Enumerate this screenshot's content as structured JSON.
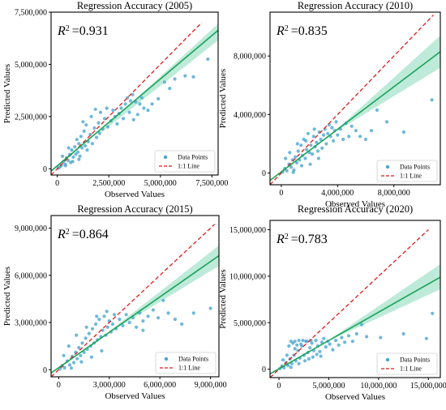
{
  "colors": {
    "points": "#4aa6cf",
    "fit_line": "#1aa35a",
    "ci_band": "#a8e3cc",
    "identity_line": "#e01b1b",
    "frame": "#000000"
  },
  "chart_data": [
    {
      "type": "scatter",
      "title": "Regression Accuracy (2005)",
      "xlabel": "Observed Values",
      "ylabel": "Predicted Values",
      "r2_label": "0.931",
      "xlim": [
        -300000,
        7800000
      ],
      "ylim": [
        -300000,
        7500000
      ],
      "xticks": [
        0,
        2500000,
        5000000,
        7500000
      ],
      "xtick_labels": [
        "0",
        "2,500,000",
        "5,000,000",
        "7,500,000"
      ],
      "yticks": [
        0,
        2500000,
        5000000,
        7500000
      ],
      "ytick_labels": [
        "0",
        "2,500,000",
        "5,000,000",
        "7,500,000"
      ],
      "fit": {
        "x": [
          -300000,
          7800000
        ],
        "y": [
          -110000,
          6630000
        ]
      },
      "ci": {
        "x": [
          2000000,
          7800000
        ],
        "upper": [
          1710000,
          6950000
        ],
        "lower": [
          1630000,
          6150000
        ]
      },
      "identity": {
        "x": [
          -300000,
          7000000
        ],
        "y": [
          -300000,
          7000000
        ]
      },
      "legend": {
        "points": "Data Points",
        "line": "1:1 Line",
        "position": "bottom-right"
      },
      "points": [
        [
          50000,
          30000
        ],
        [
          120000,
          80000
        ],
        [
          200000,
          150000
        ],
        [
          300000,
          350000
        ],
        [
          380000,
          210000
        ],
        [
          450000,
          520000
        ],
        [
          520000,
          400000
        ],
        [
          600000,
          680000
        ],
        [
          650000,
          300000
        ],
        [
          700000,
          900000
        ],
        [
          780000,
          560000
        ],
        [
          850000,
          1050000
        ],
        [
          900000,
          700000
        ],
        [
          950000,
          1400000
        ],
        [
          1000000,
          800000
        ],
        [
          1050000,
          1200000
        ],
        [
          1100000,
          600000
        ],
        [
          1150000,
          1550000
        ],
        [
          1200000,
          1000000
        ],
        [
          1300000,
          1800000
        ],
        [
          1350000,
          1100000
        ],
        [
          1400000,
          2100000
        ],
        [
          1450000,
          900000
        ],
        [
          1500000,
          1300000
        ],
        [
          1600000,
          1650000
        ],
        [
          1650000,
          2500000
        ],
        [
          1700000,
          1200000
        ],
        [
          1800000,
          1950000
        ],
        [
          1850000,
          2850000
        ],
        [
          1900000,
          1500000
        ],
        [
          2000000,
          2200000
        ],
        [
          2050000,
          1700000
        ],
        [
          2100000,
          2700000
        ],
        [
          2200000,
          1900000
        ],
        [
          2300000,
          2400000
        ],
        [
          2400000,
          2900000
        ],
        [
          2450000,
          2000000
        ],
        [
          2600000,
          2300000
        ],
        [
          2700000,
          2800000
        ],
        [
          2800000,
          2500000
        ],
        [
          2900000,
          2150000
        ],
        [
          3000000,
          2650000
        ],
        [
          3100000,
          2900000
        ],
        [
          3200000,
          2400000
        ],
        [
          3300000,
          3100000
        ],
        [
          3400000,
          3400000
        ],
        [
          3500000,
          2700000
        ],
        [
          3550000,
          3250000
        ],
        [
          3650000,
          3550000
        ],
        [
          3700000,
          2350000
        ],
        [
          3800000,
          3200000
        ],
        [
          3900000,
          2600000
        ],
        [
          4000000,
          3100000
        ],
        [
          4100000,
          3400000
        ],
        [
          4200000,
          2900000
        ],
        [
          4400000,
          2800000
        ],
        [
          4600000,
          3100000
        ],
        [
          4900000,
          3350000
        ],
        [
          5200000,
          4150000
        ],
        [
          5450000,
          3850000
        ],
        [
          5700000,
          4300000
        ],
        [
          6200000,
          4450000
        ],
        [
          6600000,
          4400000
        ],
        [
          7300000,
          5250000
        ],
        [
          250000,
          600000
        ],
        [
          400000,
          150000
        ],
        [
          550000,
          1000000
        ],
        [
          750000,
          350000
        ],
        [
          1050000,
          450000
        ],
        [
          1250000,
          2250000
        ]
      ]
    },
    {
      "type": "scatter",
      "title": "Regression Accuracy (2010)",
      "xlabel": "Observed Values",
      "ylabel": "Predicted Values",
      "r2_label": "0.835",
      "xlim": [
        -800000,
        11300000
      ],
      "ylim": [
        -800000,
        11000000
      ],
      "xticks": [
        0,
        4000000,
        8000000
      ],
      "xtick_labels": [
        "0",
        "4,000,000",
        "8,000,000"
      ],
      "yticks": [
        0,
        4000000,
        8000000
      ],
      "ytick_labels": [
        "0",
        "4,000,000",
        "8,000,000"
      ],
      "fit": {
        "x": [
          -800000,
          11300000
        ],
        "y": [
          -500000,
          8300000
        ]
      },
      "ci": {
        "x": [
          4000000,
          11300000
        ],
        "upper": [
          3050000,
          9400000
        ],
        "lower": [
          2900000,
          7200000
        ]
      },
      "identity": {
        "x": [
          -800000,
          10800000
        ],
        "y": [
          -800000,
          10800000
        ]
      },
      "legend": {
        "points": "Data Points",
        "line": "1:1 Line",
        "position": "bottom-right"
      },
      "points": [
        [
          100000,
          80000
        ],
        [
          250000,
          300000
        ],
        [
          400000,
          150000
        ],
        [
          550000,
          600000
        ],
        [
          700000,
          400000
        ],
        [
          800000,
          900000
        ],
        [
          900000,
          200000
        ],
        [
          1000000,
          1100000
        ],
        [
          1100000,
          700000
        ],
        [
          1200000,
          1500000
        ],
        [
          1300000,
          900000
        ],
        [
          1400000,
          1900000
        ],
        [
          1500000,
          1200000
        ],
        [
          1600000,
          2300000
        ],
        [
          1700000,
          1000000
        ],
        [
          1800000,
          1600000
        ],
        [
          1900000,
          2700000
        ],
        [
          2000000,
          1400000
        ],
        [
          2100000,
          1900000
        ],
        [
          2200000,
          1300000
        ],
        [
          2300000,
          2500000
        ],
        [
          2400000,
          1800000
        ],
        [
          2500000,
          2100000
        ],
        [
          2600000,
          1500000
        ],
        [
          2700000,
          2800000
        ],
        [
          2800000,
          2300000
        ],
        [
          2900000,
          1700000
        ],
        [
          3000000,
          2600000
        ],
        [
          3100000,
          3000000
        ],
        [
          3200000,
          2000000
        ],
        [
          3300000,
          2700000
        ],
        [
          3400000,
          3300000
        ],
        [
          3500000,
          2500000
        ],
        [
          3600000,
          3100000
        ],
        [
          3700000,
          2200000
        ],
        [
          3800000,
          2900000
        ],
        [
          3900000,
          3500000
        ],
        [
          4000000,
          2600000
        ],
        [
          4200000,
          3000000
        ],
        [
          4400000,
          2300000
        ],
        [
          4600000,
          3400000
        ],
        [
          4800000,
          2500000
        ],
        [
          5000000,
          3200000
        ],
        [
          5300000,
          2900000
        ],
        [
          5600000,
          2500000
        ],
        [
          6000000,
          2300000
        ],
        [
          6400000,
          2900000
        ],
        [
          6800000,
          4300000
        ],
        [
          7500000,
          3500000
        ],
        [
          8700000,
          2800000
        ],
        [
          10700000,
          5000000
        ],
        [
          300000,
          1000000
        ],
        [
          600000,
          1400000
        ],
        [
          850000,
          50000
        ],
        [
          1150000,
          2000000
        ],
        [
          1450000,
          500000
        ],
        [
          1750000,
          2200000
        ],
        [
          2050000,
          600000
        ],
        [
          2350000,
          3000000
        ],
        [
          2650000,
          1000000
        ]
      ]
    },
    {
      "type": "scatter",
      "title": "Regression Accuracy (2015)",
      "xlabel": "Observed Values",
      "ylabel": "Predicted Values",
      "r2_label": "0.864",
      "xlim": [
        -450000,
        9500000
      ],
      "ylim": [
        -450000,
        9800000
      ],
      "xticks": [
        0,
        3000000,
        6000000,
        9000000
      ],
      "xtick_labels": [
        "0",
        "3,000,000",
        "6,000,000",
        "9,000,000"
      ],
      "yticks": [
        0,
        3000000,
        6000000,
        9000000
      ],
      "ytick_labels": [
        "0",
        "3,000,000",
        "6,000,000",
        "9,000,000"
      ],
      "fit": {
        "x": [
          -450000,
          9500000
        ],
        "y": [
          -210000,
          7250000
        ]
      },
      "ci": {
        "x": [
          3000000,
          9500000
        ],
        "upper": [
          2450000,
          7900000
        ],
        "lower": [
          2350000,
          6600000
        ]
      },
      "identity": {
        "x": [
          -450000,
          9250000
        ],
        "y": [
          -450000,
          9250000
        ]
      },
      "legend": {
        "points": "Data Points",
        "line": "1:1 Line",
        "position": "bottom-right"
      },
      "points": [
        [
          80000,
          50000
        ],
        [
          200000,
          250000
        ],
        [
          350000,
          120000
        ],
        [
          500000,
          550000
        ],
        [
          650000,
          300000
        ],
        [
          800000,
          850000
        ],
        [
          900000,
          450000
        ],
        [
          1000000,
          1100000
        ],
        [
          1100000,
          700000
        ],
        [
          1200000,
          1400000
        ],
        [
          1300000,
          900000
        ],
        [
          1400000,
          1700000
        ],
        [
          1500000,
          1100000
        ],
        [
          1600000,
          2000000
        ],
        [
          1700000,
          1300000
        ],
        [
          1800000,
          2300000
        ],
        [
          1900000,
          1500000
        ],
        [
          2000000,
          2600000
        ],
        [
          2100000,
          1700000
        ],
        [
          2200000,
          2900000
        ],
        [
          2300000,
          1900000
        ],
        [
          2400000,
          3200000
        ],
        [
          2500000,
          2100000
        ],
        [
          2600000,
          2500000
        ],
        [
          2700000,
          3400000
        ],
        [
          2800000,
          2200000
        ],
        [
          2900000,
          2700000
        ],
        [
          3000000,
          3100000
        ],
        [
          3100000,
          2400000
        ],
        [
          3200000,
          2900000
        ],
        [
          3300000,
          3500000
        ],
        [
          3400000,
          2600000
        ],
        [
          3600000,
          3200000
        ],
        [
          3800000,
          2800000
        ],
        [
          4000000,
          3500000
        ],
        [
          4200000,
          3000000
        ],
        [
          4400000,
          3300000
        ],
        [
          4600000,
          2700000
        ],
        [
          4800000,
          3600000
        ],
        [
          5000000,
          3100000
        ],
        [
          5300000,
          3400000
        ],
        [
          5600000,
          3800000
        ],
        [
          5900000,
          3300000
        ],
        [
          6200000,
          4400000
        ],
        [
          6500000,
          3600000
        ],
        [
          6900000,
          3200000
        ],
        [
          7300000,
          2900000
        ],
        [
          8000000,
          3600000
        ],
        [
          9000000,
          3900000
        ],
        [
          5000000,
          2500000
        ],
        [
          300000,
          900000
        ],
        [
          600000,
          1500000
        ],
        [
          750000,
          100000
        ],
        [
          1050000,
          2200000
        ],
        [
          1350000,
          500000
        ],
        [
          1650000,
          2700000
        ],
        [
          1950000,
          800000
        ],
        [
          2250000,
          3400000
        ],
        [
          2550000,
          1200000
        ],
        [
          2850000,
          3700000
        ]
      ]
    },
    {
      "type": "scatter",
      "title": "Regression Accuracy (2020)",
      "xlabel": "Observed Values",
      "ylabel": "Predicted Values",
      "r2_label": "0.783",
      "xlim": [
        -900000,
        16200000
      ],
      "ylim": [
        -900000,
        16000000
      ],
      "xticks": [
        0,
        5000000,
        10000000,
        15000000
      ],
      "xtick_labels": [
        "0",
        "5,000,000",
        "10,000,000",
        "15,000,000"
      ],
      "yticks": [
        0,
        5000000,
        10000000,
        15000000
      ],
      "ytick_labels": [
        "0",
        "5,000,000",
        "10,000,000",
        "15,000,000"
      ],
      "fit": {
        "x": [
          -900000,
          16200000
        ],
        "y": [
          -500000,
          9900000
        ]
      },
      "ci": {
        "x": [
          5000000,
          16200000
        ],
        "upper": [
          3150000,
          11300000
        ],
        "lower": [
          3050000,
          8600000
        ]
      },
      "identity": {
        "x": [
          -900000,
          15000000
        ],
        "y": [
          -900000,
          15000000
        ]
      },
      "legend": {
        "points": "Data Points",
        "line": "1:1 Line",
        "position": "bottom-right"
      },
      "points": [
        [
          100000,
          80000
        ],
        [
          300000,
          350000
        ],
        [
          500000,
          150000
        ],
        [
          700000,
          700000
        ],
        [
          900000,
          400000
        ],
        [
          1100000,
          1100000
        ],
        [
          1300000,
          600000
        ],
        [
          1500000,
          1500000
        ],
        [
          1700000,
          900000
        ],
        [
          1900000,
          2000000
        ],
        [
          2100000,
          1200000
        ],
        [
          2300000,
          2500000
        ],
        [
          2500000,
          1500000
        ],
        [
          2700000,
          3000000
        ],
        [
          2900000,
          1800000
        ],
        [
          3100000,
          2300000
        ],
        [
          3300000,
          2800000
        ],
        [
          3500000,
          2000000
        ],
        [
          3700000,
          3100000
        ],
        [
          3900000,
          2500000
        ],
        [
          4100000,
          1900000
        ],
        [
          4300000,
          2900000
        ],
        [
          4500000,
          3300000
        ],
        [
          4700000,
          2400000
        ],
        [
          4900000,
          3000000
        ],
        [
          5100000,
          2700000
        ],
        [
          5400000,
          2100000
        ],
        [
          5700000,
          3100000
        ],
        [
          6000000,
          2600000
        ],
        [
          6300000,
          3400000
        ],
        [
          6600000,
          2900000
        ],
        [
          7000000,
          3600000
        ],
        [
          7400000,
          3000000
        ],
        [
          7800000,
          3800000
        ],
        [
          8300000,
          4800000
        ],
        [
          8800000,
          3500000
        ],
        [
          10200000,
          3400000
        ],
        [
          12500000,
          3800000
        ],
        [
          14800000,
          3300000
        ],
        [
          15400000,
          6000000
        ],
        [
          1200000,
          3000000
        ],
        [
          1600000,
          3000000
        ],
        [
          2000000,
          3100000
        ],
        [
          2400000,
          3100000
        ],
        [
          2800000,
          3000000
        ],
        [
          3200000,
          3100000
        ],
        [
          1000000,
          2500000
        ],
        [
          1400000,
          2800000
        ],
        [
          1800000,
          2600000
        ],
        [
          2200000,
          2700000
        ],
        [
          400000,
          1000000
        ],
        [
          800000,
          1500000
        ],
        [
          1200000,
          200000
        ],
        [
          1600000,
          2200000
        ],
        [
          2000000,
          600000
        ],
        [
          2600000,
          900000
        ],
        [
          3000000,
          1100000
        ],
        [
          3400000,
          1300000
        ],
        [
          3800000,
          1600000
        ],
        [
          4200000,
          1400000
        ]
      ]
    }
  ]
}
